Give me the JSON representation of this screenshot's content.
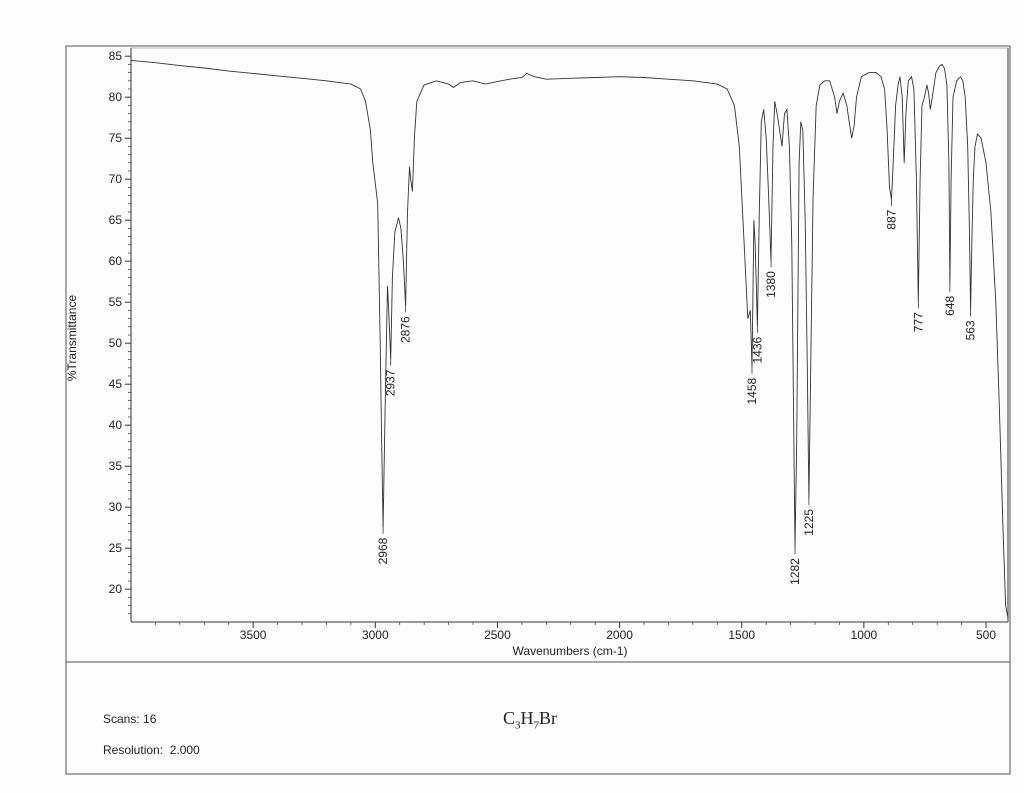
{
  "chart_data": {
    "type": "line",
    "xlabel": "Wavenumbers (cm-1)",
    "ylabel": "%Transmittance",
    "xlim": [
      4000,
      410
    ],
    "ylim": [
      16,
      86
    ],
    "x_ticks": [
      3500,
      3000,
      2500,
      2000,
      1500,
      1000,
      500
    ],
    "y_ticks": [
      20,
      25,
      30,
      35,
      40,
      45,
      50,
      55,
      60,
      65,
      70,
      75,
      80,
      85
    ],
    "grid": false,
    "series": [
      {
        "points": [
          [
            4000,
            84.6
          ],
          [
            3900,
            84.5
          ],
          [
            3800,
            84.2
          ],
          [
            3700,
            83.8
          ],
          [
            3600,
            83.2
          ],
          [
            3500,
            82.9
          ],
          [
            3400,
            82.6
          ],
          [
            3300,
            82.3
          ],
          [
            3200,
            82.0
          ],
          [
            3100,
            81.6
          ],
          [
            3060,
            81.0
          ],
          [
            3040,
            79.5
          ],
          [
            3020,
            76.0
          ],
          [
            3010,
            72.0
          ],
          [
            3000,
            69.5
          ],
          [
            2990,
            67.0
          ],
          [
            2980,
            50.0
          ],
          [
            2975,
            40.0
          ],
          [
            2968,
            27.5
          ],
          [
            2960,
            42.0
          ],
          [
            2950,
            57.0
          ],
          [
            2945,
            54.0
          ],
          [
            2937,
            48.0
          ],
          [
            2930,
            58.0
          ],
          [
            2920,
            63.5
          ],
          [
            2905,
            65.3
          ],
          [
            2895,
            64.0
          ],
          [
            2885,
            60.0
          ],
          [
            2876,
            54.5
          ],
          [
            2868,
            66.0
          ],
          [
            2860,
            71.5
          ],
          [
            2855,
            70.0
          ],
          [
            2848,
            68.5
          ],
          [
            2840,
            75.0
          ],
          [
            2830,
            79.5
          ],
          [
            2800,
            81.5
          ],
          [
            2750,
            82.0
          ],
          [
            2700,
            81.6
          ],
          [
            2680,
            81.2
          ],
          [
            2650,
            81.8
          ],
          [
            2600,
            82.0
          ],
          [
            2550,
            81.6
          ],
          [
            2500,
            81.9
          ],
          [
            2450,
            82.2
          ],
          [
            2400,
            82.4
          ],
          [
            2380,
            82.9
          ],
          [
            2350,
            82.5
          ],
          [
            2300,
            82.2
          ],
          [
            2200,
            82.3
          ],
          [
            2100,
            82.4
          ],
          [
            2000,
            82.5
          ],
          [
            1900,
            82.4
          ],
          [
            1800,
            82.2
          ],
          [
            1700,
            82.0
          ],
          [
            1600,
            81.6
          ],
          [
            1560,
            81.0
          ],
          [
            1530,
            79.0
          ],
          [
            1510,
            74.0
          ],
          [
            1490,
            62.0
          ],
          [
            1475,
            53.0
          ],
          [
            1465,
            54.0
          ],
          [
            1458,
            47.0
          ],
          [
            1450,
            65.0
          ],
          [
            1445,
            62.0
          ],
          [
            1436,
            52.0
          ],
          [
            1428,
            66.0
          ],
          [
            1420,
            77.0
          ],
          [
            1410,
            78.5
          ],
          [
            1400,
            75.0
          ],
          [
            1390,
            68.0
          ],
          [
            1380,
            60.0
          ],
          [
            1372,
            74.0
          ],
          [
            1365,
            79.5
          ],
          [
            1355,
            78.0
          ],
          [
            1345,
            76.0
          ],
          [
            1335,
            74.0
          ],
          [
            1325,
            78.0
          ],
          [
            1315,
            78.5
          ],
          [
            1305,
            74.0
          ],
          [
            1295,
            62.0
          ],
          [
            1282,
            25.0
          ],
          [
            1275,
            38.0
          ],
          [
            1265,
            72.0
          ],
          [
            1258,
            77.0
          ],
          [
            1250,
            76.0
          ],
          [
            1240,
            65.0
          ],
          [
            1232,
            48.0
          ],
          [
            1225,
            31.0
          ],
          [
            1218,
            46.0
          ],
          [
            1208,
            68.0
          ],
          [
            1195,
            79.0
          ],
          [
            1180,
            81.5
          ],
          [
            1160,
            82.0
          ],
          [
            1140,
            82.0
          ],
          [
            1120,
            80.0
          ],
          [
            1110,
            78.0
          ],
          [
            1100,
            79.5
          ],
          [
            1085,
            80.5
          ],
          [
            1070,
            79.0
          ],
          [
            1060,
            77.0
          ],
          [
            1050,
            75.0
          ],
          [
            1040,
            76.5
          ],
          [
            1030,
            80.0
          ],
          [
            1010,
            82.5
          ],
          [
            980,
            83.0
          ],
          [
            950,
            83.0
          ],
          [
            930,
            82.5
          ],
          [
            915,
            81.0
          ],
          [
            905,
            76.0
          ],
          [
            895,
            69.0
          ],
          [
            887,
            67.5
          ],
          [
            880,
            72.0
          ],
          [
            870,
            79.0
          ],
          [
            860,
            81.5
          ],
          [
            852,
            82.5
          ],
          [
            843,
            80.0
          ],
          [
            835,
            72.0
          ],
          [
            828,
            78.0
          ],
          [
            818,
            82.0
          ],
          [
            805,
            82.5
          ],
          [
            795,
            81.0
          ],
          [
            785,
            70.0
          ],
          [
            777,
            55.0
          ],
          [
            770,
            70.0
          ],
          [
            762,
            79.0
          ],
          [
            752,
            80.0
          ],
          [
            742,
            81.5
          ],
          [
            735,
            80.5
          ],
          [
            728,
            78.5
          ],
          [
            720,
            80.0
          ],
          [
            705,
            83.0
          ],
          [
            690,
            83.8
          ],
          [
            680,
            84.0
          ],
          [
            670,
            83.5
          ],
          [
            660,
            81.5
          ],
          [
            652,
            72.0
          ],
          [
            648,
            57.0
          ],
          [
            643,
            70.0
          ],
          [
            635,
            80.0
          ],
          [
            620,
            82.0
          ],
          [
            605,
            82.5
          ],
          [
            595,
            82.0
          ],
          [
            585,
            80.0
          ],
          [
            575,
            74.0
          ],
          [
            568,
            64.0
          ],
          [
            563,
            54.0
          ],
          [
            558,
            62.0
          ],
          [
            552,
            70.0
          ],
          [
            545,
            74.0
          ],
          [
            535,
            75.5
          ],
          [
            520,
            75.0
          ],
          [
            500,
            72.0
          ],
          [
            480,
            66.0
          ],
          [
            460,
            55.0
          ],
          [
            445,
            42.0
          ],
          [
            430,
            27.0
          ],
          [
            420,
            18.0
          ],
          [
            410,
            16.5
          ]
        ]
      }
    ],
    "peak_labels": [
      {
        "text": "2968",
        "x": 2968,
        "y": 27.5
      },
      {
        "text": "2937",
        "x": 2937,
        "y": 48.0
      },
      {
        "text": "2876",
        "x": 2876,
        "y": 54.5
      },
      {
        "text": "1458",
        "x": 1458,
        "y": 47.0
      },
      {
        "text": "1436",
        "x": 1436,
        "y": 52.0
      },
      {
        "text": "1380",
        "x": 1380,
        "y": 60.0
      },
      {
        "text": "1282",
        "x": 1282,
        "y": 25.0
      },
      {
        "text": "1225",
        "x": 1225,
        "y": 31.0
      },
      {
        "text": "887",
        "x": 887,
        "y": 67.5
      },
      {
        "text": "777",
        "x": 777,
        "y": 55.0
      },
      {
        "text": "648",
        "x": 648,
        "y": 57.0
      },
      {
        "text": "563",
        "x": 563,
        "y": 54.0
      }
    ]
  },
  "footer": {
    "scans": "Scans: 16",
    "resolution": "Resolution:  2.000",
    "formula_parts": [
      "C",
      "3",
      "H",
      "7",
      "Br"
    ]
  }
}
